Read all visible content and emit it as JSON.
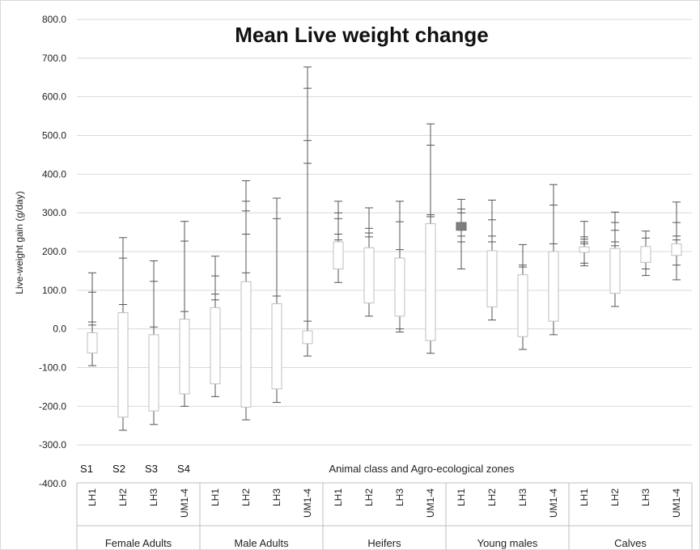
{
  "chart_data": {
    "type": "box",
    "title": "Mean Live weight change",
    "ylabel": "Live-weight gain (g/day)",
    "xlabel": "Animal class and Agro-ecological zones",
    "ylim": [
      -400,
      800
    ],
    "yticks": [
      "800.0",
      "700.0",
      "600.0",
      "500.0",
      "400.0",
      "300.0",
      "200.0",
      "100.0",
      "0.0",
      "-100.0",
      "-200.0",
      "-300.0",
      "-400.0"
    ],
    "grid": true,
    "side_labels": [
      "S1",
      "S2",
      "S3",
      "S4"
    ],
    "groups": [
      {
        "name": "Female Adults",
        "categories": [
          "LH1",
          "LH2",
          "LH3",
          "UM1-4"
        ]
      },
      {
        "name": "Male Adults",
        "categories": [
          "LH1",
          "LH2",
          "LH3",
          "UM1-4"
        ]
      },
      {
        "name": "Heifers",
        "categories": [
          "LH1",
          "LH2",
          "LH3",
          "UM1-4"
        ]
      },
      {
        "name": "Young males",
        "categories": [
          "LH1",
          "LH2",
          "LH3",
          "UM1-4"
        ]
      },
      {
        "name": "Calves",
        "categories": [
          "LH1",
          "LH2",
          "LH3",
          "UM1-4"
        ]
      }
    ],
    "boxes": [
      {
        "group": "Female Adults",
        "category": "LH1",
        "box": [
          -62,
          -10
        ],
        "whisker": [
          -95,
          145
        ],
        "ticks": [
          95,
          18,
          10
        ]
      },
      {
        "group": "Female Adults",
        "category": "LH2",
        "box": [
          -228,
          42
        ],
        "whisker": [
          -262,
          236
        ],
        "ticks": [
          183,
          63
        ]
      },
      {
        "group": "Female Adults",
        "category": "LH3",
        "box": [
          -212,
          -15
        ],
        "whisker": [
          -247,
          176
        ],
        "ticks": [
          123,
          5
        ]
      },
      {
        "group": "Female Adults",
        "category": "UM1-4",
        "box": [
          -168,
          25
        ],
        "whisker": [
          -200,
          278
        ],
        "ticks": [
          227,
          45
        ]
      },
      {
        "group": "Male Adults",
        "category": "LH1",
        "box": [
          -142,
          55
        ],
        "whisker": [
          -175,
          188
        ],
        "ticks": [
          137,
          90,
          75
        ]
      },
      {
        "group": "Male Adults",
        "category": "LH2",
        "box": [
          -202,
          122
        ],
        "whisker": [
          -235,
          383
        ],
        "ticks": [
          330,
          305,
          245,
          145
        ]
      },
      {
        "group": "Male Adults",
        "category": "LH3",
        "box": [
          -155,
          65
        ],
        "whisker": [
          -190,
          338
        ],
        "ticks": [
          285,
          85
        ]
      },
      {
        "group": "Male Adults",
        "category": "UM1-4",
        "box": [
          -38,
          -5
        ],
        "whisker": [
          -70,
          677
        ],
        "ticks": [
          622,
          487,
          428,
          20
        ]
      },
      {
        "group": "Heifers",
        "category": "LH1",
        "box": [
          155,
          225
        ],
        "whisker": [
          120,
          330
        ],
        "ticks": [
          300,
          285,
          245,
          230
        ]
      },
      {
        "group": "Heifers",
        "category": "LH2",
        "box": [
          67,
          210
        ],
        "whisker": [
          33,
          313
        ],
        "ticks": [
          260,
          248,
          238
        ]
      },
      {
        "group": "Heifers",
        "category": "LH3",
        "box": [
          33,
          183
        ],
        "whisker": [
          -8,
          330
        ],
        "ticks": [
          277,
          205,
          0
        ]
      },
      {
        "group": "Heifers",
        "category": "UM1-4",
        "box": [
          -30,
          272
        ],
        "whisker": [
          -63,
          530
        ],
        "ticks": [
          475,
          295,
          290
        ]
      },
      {
        "group": "Young males",
        "category": "LH1",
        "box": [
          255,
          275
        ],
        "whisker": [
          155,
          335
        ],
        "ticks": [
          310,
          300,
          240,
          225
        ],
        "filled": true
      },
      {
        "group": "Young males",
        "category": "LH2",
        "box": [
          57,
          202
        ],
        "whisker": [
          23,
          333
        ],
        "ticks": [
          282,
          240,
          225
        ]
      },
      {
        "group": "Young males",
        "category": "LH3",
        "box": [
          -20,
          140
        ],
        "whisker": [
          -53,
          218
        ],
        "ticks": [
          165,
          160
        ]
      },
      {
        "group": "Young males",
        "category": "UM1-4",
        "box": [
          20,
          200
        ],
        "whisker": [
          -15,
          373
        ],
        "ticks": [
          320,
          220
        ]
      },
      {
        "group": "Calves",
        "category": "LH1",
        "box": [
          198,
          212
        ],
        "whisker": [
          163,
          278
        ],
        "ticks": [
          238,
          232,
          225,
          220,
          170
        ]
      },
      {
        "group": "Calves",
        "category": "LH2",
        "box": [
          92,
          208
        ],
        "whisker": [
          58,
          302
        ],
        "ticks": [
          275,
          255,
          225,
          215
        ]
      },
      {
        "group": "Calves",
        "category": "LH3",
        "box": [
          172,
          213
        ],
        "whisker": [
          138,
          253
        ],
        "ticks": [
          235,
          155
        ]
      },
      {
        "group": "Calves",
        "category": "UM1-4",
        "box": [
          190,
          220
        ],
        "whisker": [
          127,
          328
        ],
        "ticks": [
          275,
          240,
          230,
          165
        ]
      }
    ]
  }
}
